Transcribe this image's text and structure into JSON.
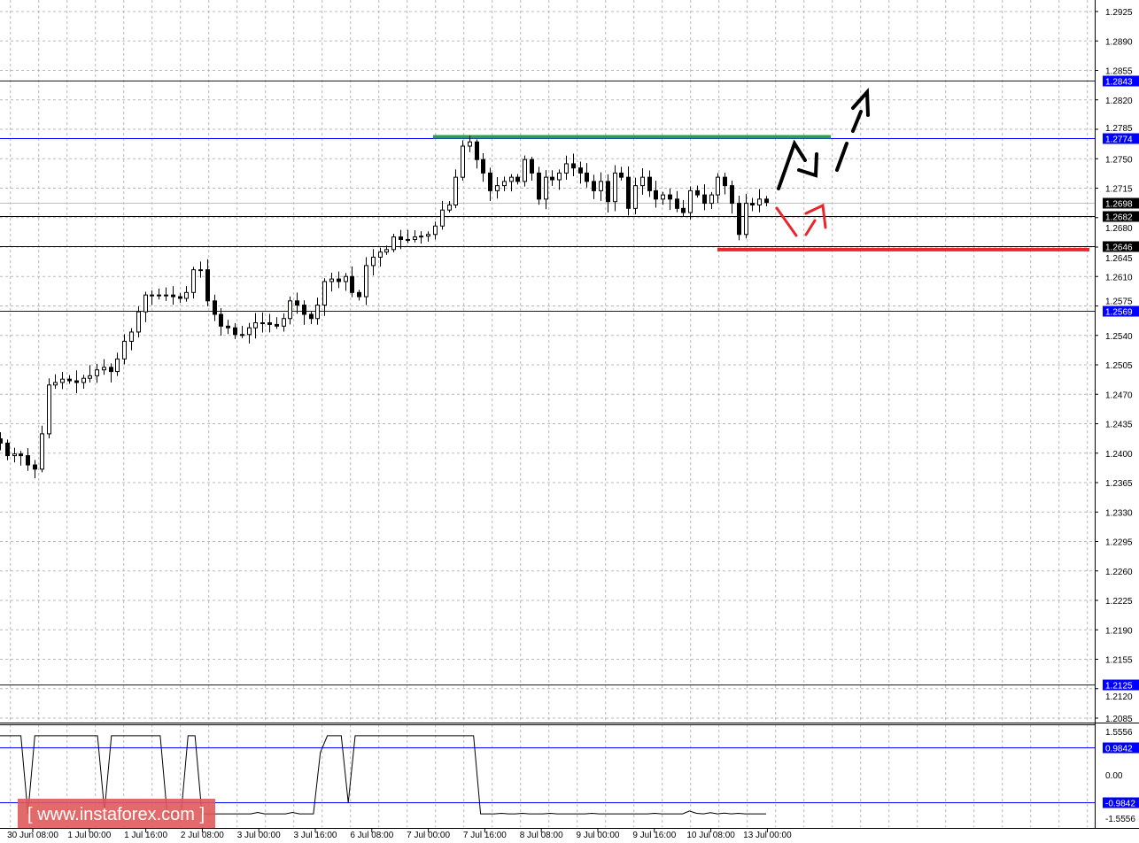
{
  "chart_data": {
    "type": "candlestick",
    "title": "",
    "xlabel": "",
    "ylabel": "",
    "ylim": [
      1.2085,
      1.2925
    ],
    "grid": true,
    "y_ticks": [
      "1.2925",
      "1.2890",
      "1.2855",
      "1.2820",
      "1.2785",
      "1.2750",
      "1.2715",
      "1.2680",
      "1.2645",
      "1.2610",
      "1.2575",
      "1.2540",
      "1.2505",
      "1.2470",
      "1.2435",
      "1.2400",
      "1.2365",
      "1.2330",
      "1.2295",
      "1.2260",
      "1.2225",
      "1.2190",
      "1.2155",
      "1.2120",
      "1.2085"
    ],
    "x_ticks": [
      "30 Jun 08:00",
      "1 Jul 00:00",
      "1 Jul 16:00",
      "2 Jul 08:00",
      "3 Jul 00:00",
      "3 Jul 16:00",
      "6 Jul 08:00",
      "7 Jul 00:00",
      "7 Jul 16:00",
      "8 Jul 08:00",
      "9 Jul 00:00",
      "9 Jul 16:00",
      "10 Jul 08:00",
      "13 Jul 00:00"
    ],
    "closes": [
      1.2412,
      1.2397,
      1.2399,
      1.2397,
      1.2386,
      1.2381,
      1.2423,
      1.2481,
      1.2484,
      1.2488,
      1.2486,
      1.2484,
      1.2489,
      1.2492,
      1.2499,
      1.2502,
      1.2497,
      1.2512,
      1.2533,
      1.2544,
      1.2568,
      1.2588,
      1.2588,
      1.2588,
      1.2588,
      1.2586,
      1.2584,
      1.2591,
      1.2618,
      1.2618,
      1.2581,
      1.2565,
      1.2551,
      1.2549,
      1.2541,
      1.2541,
      1.2549,
      1.2555,
      1.2555,
      1.2553,
      1.2551,
      1.256,
      1.2581,
      1.2576,
      1.2565,
      1.256,
      1.2576,
      1.2604,
      1.2607,
      1.2604,
      1.261,
      1.2591,
      1.2586,
      1.2623,
      1.2633,
      1.2639,
      1.2642,
      1.2657,
      1.2654,
      1.2654,
      1.2657,
      1.2658,
      1.266,
      1.267,
      1.2689,
      1.2695,
      1.2728,
      1.2765,
      1.277,
      1.2749,
      1.2733,
      1.2712,
      1.2718,
      1.2723,
      1.2728,
      1.2723,
      1.2749,
      1.2733,
      1.2702,
      1.2728,
      1.2725,
      1.2733,
      1.2744,
      1.2739,
      1.2733,
      1.2723,
      1.2712,
      1.2723,
      1.2699,
      1.2733,
      1.2728,
      1.2691,
      1.2718,
      1.2728,
      1.2712,
      1.2702,
      1.2707,
      1.2702,
      1.2691,
      1.2686,
      1.2712,
      1.2707,
      1.2697,
      1.2707,
      1.2728,
      1.2718,
      1.2697,
      1.266,
      1.2697,
      1.2695,
      1.2702,
      1.2698
    ],
    "current_price": {
      "value": 1.2698,
      "label": "1.2698",
      "color": "#000000"
    },
    "levels": [
      {
        "value": 1.2843,
        "label": "1.2843",
        "color": "#0000ff"
      },
      {
        "value": 1.2774,
        "label": "1.2774",
        "color": "#0000ff"
      },
      {
        "value": 1.2682,
        "label": "1.2682",
        "color": "#000000"
      },
      {
        "value": 1.2646,
        "label": "1.2646",
        "color": "#000000"
      },
      {
        "value": 1.2569,
        "label": "1.2569",
        "color": "#0000ff"
      },
      {
        "value": 1.2125,
        "label": "1.2125",
        "color": "#0000ff"
      }
    ],
    "resistance_segment": {
      "value": 1.2776,
      "color": "#2ca14a"
    },
    "support_segment": {
      "value": 1.2642,
      "color": "#e8262b"
    },
    "oscillator": {
      "ylim": [
        -1.5556,
        1.5556
      ],
      "y_ticks": [
        "1.5556",
        "0.00",
        "-1.5556"
      ],
      "levels": [
        {
          "value": 0.9842,
          "label": "0.9842",
          "color": "#0000ff"
        },
        {
          "value": -0.9842,
          "label": "-0.9842",
          "color": "#0000ff"
        }
      ],
      "values": [
        1.4,
        1.4,
        1.4,
        1.4,
        -1.4,
        1.4,
        1.4,
        1.4,
        1.4,
        1.4,
        1.4,
        1.4,
        1.4,
        1.4,
        1.4,
        -1.3,
        1.4,
        1.4,
        1.4,
        1.4,
        1.4,
        1.4,
        1.4,
        1.4,
        -1.4,
        -1.4,
        -1.4,
        1.4,
        1.4,
        -1.4,
        -1.4,
        -1.4,
        -1.4,
        -1.4,
        -1.4,
        -1.4,
        -1.4,
        -1.35,
        -1.4,
        -1.4,
        -1.4,
        -1.4,
        -1.35,
        -1.4,
        -1.4,
        -1.4,
        0.8,
        1.4,
        1.4,
        1.4,
        -1.0,
        1.4,
        1.4,
        1.4,
        1.4,
        1.4,
        1.4,
        1.4,
        1.4,
        1.4,
        1.4,
        1.4,
        1.4,
        1.4,
        1.4,
        1.4,
        1.4,
        1.4,
        1.4,
        -1.4,
        -1.4,
        -1.4,
        -1.38,
        -1.4,
        -1.4,
        -1.38,
        -1.4,
        -1.4,
        -1.4,
        -1.38,
        -1.4,
        -1.4,
        -1.4,
        -1.4,
        -1.4,
        -1.38,
        -1.4,
        -1.4,
        -1.4,
        -1.4,
        -1.4,
        -1.4,
        -1.4,
        -1.4,
        -1.38,
        -1.4,
        -1.4,
        -1.4,
        -1.4,
        -1.3,
        -1.38,
        -1.4,
        -1.36,
        -1.4,
        -1.37,
        -1.4,
        -1.38,
        -1.4,
        -1.4,
        -1.4,
        -1.4
      ]
    }
  },
  "watermark": {
    "text": "[ www.instaforex.com ]",
    "color": "#e05a5a"
  },
  "colors": {
    "forecast_up": "#000000",
    "forecast_down": "#e8262b",
    "grid": "#b8b8b8"
  }
}
